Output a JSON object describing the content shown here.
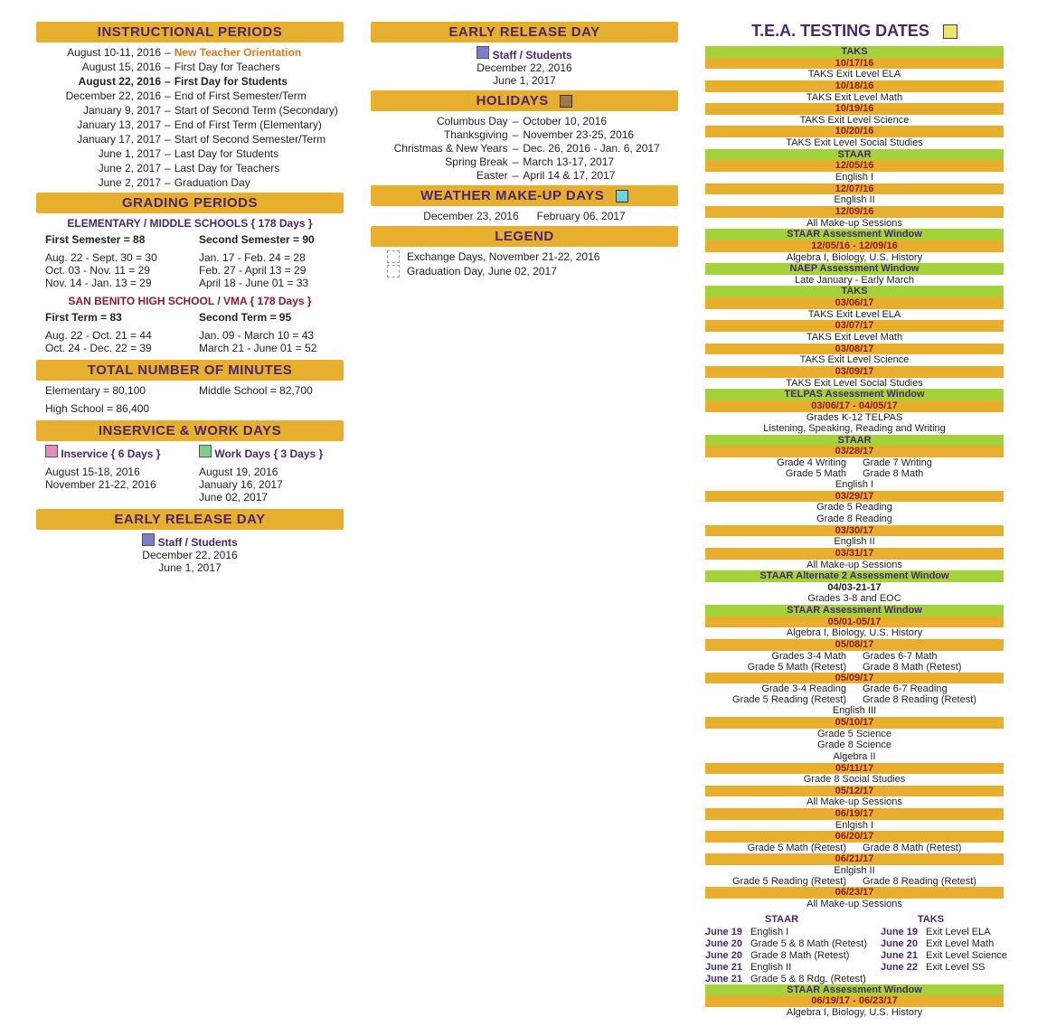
{
  "col1": {
    "instructional": {
      "header": "INSTRUCTIONAL PERIODS",
      "rows": [
        {
          "date": "August 10-11, 2016",
          "evt": "New Teacher Orientation",
          "orange": true
        },
        {
          "date": "August 15, 2016",
          "evt": "First Day for Teachers"
        },
        {
          "date": "August 22, 2016",
          "evt": "First Day for Students",
          "bold": true
        },
        {
          "date": "December 22, 2016",
          "evt": "End of First Semester/Term"
        },
        {
          "date": "January 9, 2017",
          "evt": "Start of Second Term (Secondary)"
        },
        {
          "date": "January 13, 2017",
          "evt": "End of First Term (Elementary)"
        },
        {
          "date": "January 17, 2017",
          "evt": "Start of Second Semester/Term"
        },
        {
          "date": "June 1, 2017",
          "evt": "Last Day for Students"
        },
        {
          "date": "June 2, 2017",
          "evt": "Last Day for Teachers"
        },
        {
          "date": "June 2, 2017",
          "evt": "Graduation Day"
        }
      ]
    },
    "grading": {
      "header": "GRADING PERIODS",
      "elem_label": "ELEMENTARY / MIDDLE SCHOOLS  { 178 Days }",
      "elem_sem1_label": "First Semester  =  88",
      "elem_sem2_label": "Second Semester  =  90",
      "elem_left": [
        "Aug. 22 - Sept. 30  =  30",
        "Oct. 03 - Nov. 11  =  29",
        "Nov. 14 - Jan. 13  =  29"
      ],
      "elem_right": [
        "Jan. 17 - Feb. 24  =  28",
        "Feb. 27 - April 13  =  29",
        "April 18 - June 01  =  33"
      ],
      "hs_label": "SAN BENITO HIGH SCHOOL / VMA  { 178 Days }",
      "hs_t1_label": "First Term  =  83",
      "hs_t2_label": "Second Term  =  95",
      "hs_left": [
        "Aug. 22 - Oct. 21  =  44",
        "Oct. 24 - Dec. 22  =  39"
      ],
      "hs_right": [
        "Jan. 09 - March 10  =  43",
        "March 21 - June 01  =  52"
      ]
    },
    "minutes": {
      "header": "TOTAL NUMBER OF MINUTES",
      "l1": "Elementary = 80,100",
      "r1": "Middle School = 82,700",
      "l2": "High School  = 86,400"
    },
    "inservice": {
      "header": "INSERVICE  &  WORK DAYS",
      "l_label": "Inservice  { 6 Days }",
      "r_label": "Work Days  { 3 Days }",
      "l_box": "#e88ac1",
      "r_box": "#7fd08a",
      "left": [
        "August 15-18, 2016",
        "November 21-22, 2016"
      ],
      "right": [
        "August 19, 2016",
        "January 16, 2017",
        "June 02, 2017"
      ]
    },
    "early1": {
      "header": "EARLY RELEASE DAY",
      "label": "Staff / Students",
      "box": "#7c7cc9",
      "d1": "December 22, 2016",
      "d2": "June 1, 2017"
    }
  },
  "col2": {
    "early": {
      "header": "EARLY RELEASE DAY",
      "label": "Staff / Students",
      "box": "#7c7cc9",
      "d1": "December 22, 2016",
      "d2": "June 1, 2017"
    },
    "holidays": {
      "header": "HOLIDAYS",
      "box": "#a07a50",
      "rows": [
        {
          "l": "Columbus Day",
          "r": "October 10, 2016"
        },
        {
          "l": "Thanksgiving",
          "r": "November 23-25, 2016"
        },
        {
          "l": "Christmas & New Years",
          "r": "Dec. 26, 2016 - Jan. 6, 2017"
        },
        {
          "l": "Spring Break",
          "r": "March 13-17, 2017"
        },
        {
          "l": "Easter",
          "r": "April 14 & 17, 2017"
        }
      ]
    },
    "makeup": {
      "header": "WEATHER MAKE-UP DAYS",
      "box": "#6fd0e0",
      "d1": "December 23, 2016",
      "d2": "February 06, 2017"
    },
    "legend": {
      "header": "LEGEND",
      "r1": "Exchange Days,  November 21-22, 2016",
      "r2": "Graduation Day,  June 02, 2017"
    }
  },
  "col3": {
    "title": "T.E.A. TESTING DATES",
    "box": "#efe36a",
    "rows": [
      {
        "t": "green",
        "text": "TAKS"
      },
      {
        "t": "gold",
        "cls": "darkred-text",
        "text": "10/17/16"
      },
      {
        "t": "txt",
        "text": "TAKS Exit Level ELA"
      },
      {
        "t": "gold",
        "cls": "darkred-text",
        "text": "10/18/16"
      },
      {
        "t": "txt",
        "text": "TAKS Exit Level Math"
      },
      {
        "t": "gold",
        "cls": "darkred-text",
        "text": "10/19/16"
      },
      {
        "t": "txt",
        "text": "TAKS Exit Level Science"
      },
      {
        "t": "gold",
        "cls": "darkred-text",
        "text": "10/20/16"
      },
      {
        "t": "txt",
        "text": "TAKS Exit Level Social Studies"
      },
      {
        "t": "green",
        "text": "STAAR"
      },
      {
        "t": "gold",
        "cls": "darkred-text",
        "text": "12/05/16"
      },
      {
        "t": "txt",
        "text": "English I"
      },
      {
        "t": "gold",
        "cls": "darkred-text",
        "text": "12/07/16"
      },
      {
        "t": "txt",
        "text": "English II"
      },
      {
        "t": "gold",
        "cls": "darkred-text",
        "text": "12/09/16"
      },
      {
        "t": "txt",
        "text": "All Make-up Sessions"
      },
      {
        "t": "green",
        "text": "STAAR Assessment Window"
      },
      {
        "t": "gold",
        "cls": "darkred-text",
        "text": "12/05/16 - 12/09/16"
      },
      {
        "t": "txt",
        "text": "Algebra I, Biology, U.S. History"
      },
      {
        "t": "green",
        "text": "NAEP Assessment Window"
      },
      {
        "t": "txt",
        "text": "Late January - Early March"
      },
      {
        "t": "green",
        "text": "TAKS"
      },
      {
        "t": "gold",
        "cls": "darkred-text",
        "text": "03/06/17"
      },
      {
        "t": "txt",
        "text": "TAKS Exit Level ELA"
      },
      {
        "t": "gold",
        "cls": "darkred-text",
        "text": "03/07/17"
      },
      {
        "t": "txt",
        "text": "TAKS Exit Level Math"
      },
      {
        "t": "gold",
        "cls": "darkred-text",
        "text": "03/08/17"
      },
      {
        "t": "txt",
        "text": "TAKS Exit Level Science"
      },
      {
        "t": "gold",
        "cls": "darkred-text",
        "text": "03/09/17"
      },
      {
        "t": "txt",
        "text": "TAKS Exit Level Social Studies"
      },
      {
        "t": "green",
        "text": "TELPAS Assessment Window"
      },
      {
        "t": "gold",
        "cls": "darkred-text",
        "text": "03/06/17 - 04/05/17"
      },
      {
        "t": "txt",
        "text": "Grades K-12 TELPAS"
      },
      {
        "t": "txt",
        "text": "Listening, Speaking, Reading and Writing"
      },
      {
        "t": "green",
        "text": "STAAR"
      },
      {
        "t": "gold",
        "cls": "darkred-text",
        "text": "03/28/17"
      },
      {
        "t": "pair",
        "l": "Grade 4  Writing",
        "r": "Grade 7  Writing"
      },
      {
        "t": "pair",
        "l": "Grade 5 Math",
        "r": "Grade 8 Math"
      },
      {
        "t": "txt",
        "text": "English I"
      },
      {
        "t": "gold",
        "cls": "darkred-text",
        "text": "03/29/17"
      },
      {
        "t": "txt",
        "text": "Grade 5 Reading"
      },
      {
        "t": "txt",
        "text": "Grade 8 Reading"
      },
      {
        "t": "gold",
        "cls": "darkred-text",
        "text": "03/30/17"
      },
      {
        "t": "txt",
        "text": "English II"
      },
      {
        "t": "gold",
        "cls": "darkred-text",
        "text": "03/31/17"
      },
      {
        "t": "txt",
        "text": "All Make-up Sessions"
      },
      {
        "t": "green",
        "text": "STAAR Alternate 2 Assessment Window"
      },
      {
        "t": "txt",
        "cls": "darkred-text",
        "text": "04/03-21-17",
        "bold": true
      },
      {
        "t": "txt",
        "text": "Grades 3-8 and EOC"
      },
      {
        "t": "green",
        "text": "STAAR Assessment Window"
      },
      {
        "t": "gold",
        "cls": "darkred-text",
        "text": "05/01-05/17"
      },
      {
        "t": "txt",
        "text": "Algebra I, Biology, U.S. History"
      },
      {
        "t": "gold",
        "cls": "darkred-text",
        "text": "05/08/17"
      },
      {
        "t": "pair",
        "l": "Grades 3-4 Math",
        "r": "Grades 6-7 Math"
      },
      {
        "t": "pair",
        "l": "Grade 5 Math (Retest)",
        "r": "Grade 8 Math (Retest)"
      },
      {
        "t": "gold",
        "cls": "darkred-text",
        "text": "05/09/17"
      },
      {
        "t": "pair",
        "l": "Grade 3-4 Reading",
        "r": "Grade 6-7 Reading"
      },
      {
        "t": "pair",
        "l": "Grade 5 Reading (Retest)",
        "r": "Grade 8 Reading (Retest)"
      },
      {
        "t": "txt",
        "text": "English III"
      },
      {
        "t": "gold",
        "cls": "darkred-text",
        "text": "05/10/17"
      },
      {
        "t": "txt",
        "text": "Grade 5 Science"
      },
      {
        "t": "txt",
        "text": "Grade 8 Science"
      },
      {
        "t": "txt",
        "text": "Algebra II"
      },
      {
        "t": "gold",
        "cls": "darkred-text",
        "text": "05/11/17"
      },
      {
        "t": "txt",
        "text": "Grade 8 Social Studies"
      },
      {
        "t": "gold",
        "cls": "darkred-text",
        "text": "05/12/17"
      },
      {
        "t": "txt",
        "text": "All Make-up Sessions"
      },
      {
        "t": "gold",
        "cls": "darkred-text",
        "text": "06/19/17"
      },
      {
        "t": "txt",
        "text": "Enlgish I"
      },
      {
        "t": "gold",
        "cls": "darkred-text",
        "text": "06/20/17"
      },
      {
        "t": "pair",
        "l": "Grade 5 Math (Retest)",
        "r": "Grade 8 Math (Retest)"
      },
      {
        "t": "gold",
        "cls": "darkred-text",
        "text": "06/21/17"
      },
      {
        "t": "txt",
        "text": "Enlgish II"
      },
      {
        "t": "pair",
        "l": "Grade 5 Reading (Retest)",
        "r": "Grade 8 Reading (Retest)"
      },
      {
        "t": "gold",
        "cls": "darkred-text",
        "text": "06/23/17"
      },
      {
        "t": "txt",
        "text": "All Make-up Sessions"
      }
    ],
    "hdr_pair": {
      "l": "STAAR",
      "r": "TAKS"
    },
    "june": [
      {
        "d1": "June 19",
        "e1": "English I",
        "d2": "June 19",
        "e2": "Exit Level ELA"
      },
      {
        "d1": "June 20",
        "e1": "Grade 5 & 8 Math (Retest)",
        "d2": "June 20",
        "e2": "Exit Level Math"
      },
      {
        "d1": "June 20",
        "e1": "Grade 8 Math (Retest)",
        "d2": "June 21",
        "e2": "Exit Level Science"
      },
      {
        "d1": "June 21",
        "e1": "English II",
        "d2": "June 22",
        "e2": "Exit Level SS"
      },
      {
        "d1": "June 21",
        "e1": "Grade 5 & 8 Rdg. (Retest)",
        "d2": "",
        "e2": ""
      }
    ],
    "tail": [
      {
        "t": "green",
        "text": "STAAR Assessment Window"
      },
      {
        "t": "gold",
        "cls": "darkred-text",
        "text": "06/19/17 - 06/23/17"
      },
      {
        "t": "txt",
        "text": "Algebra I, Biology, U.S. History"
      }
    ]
  }
}
